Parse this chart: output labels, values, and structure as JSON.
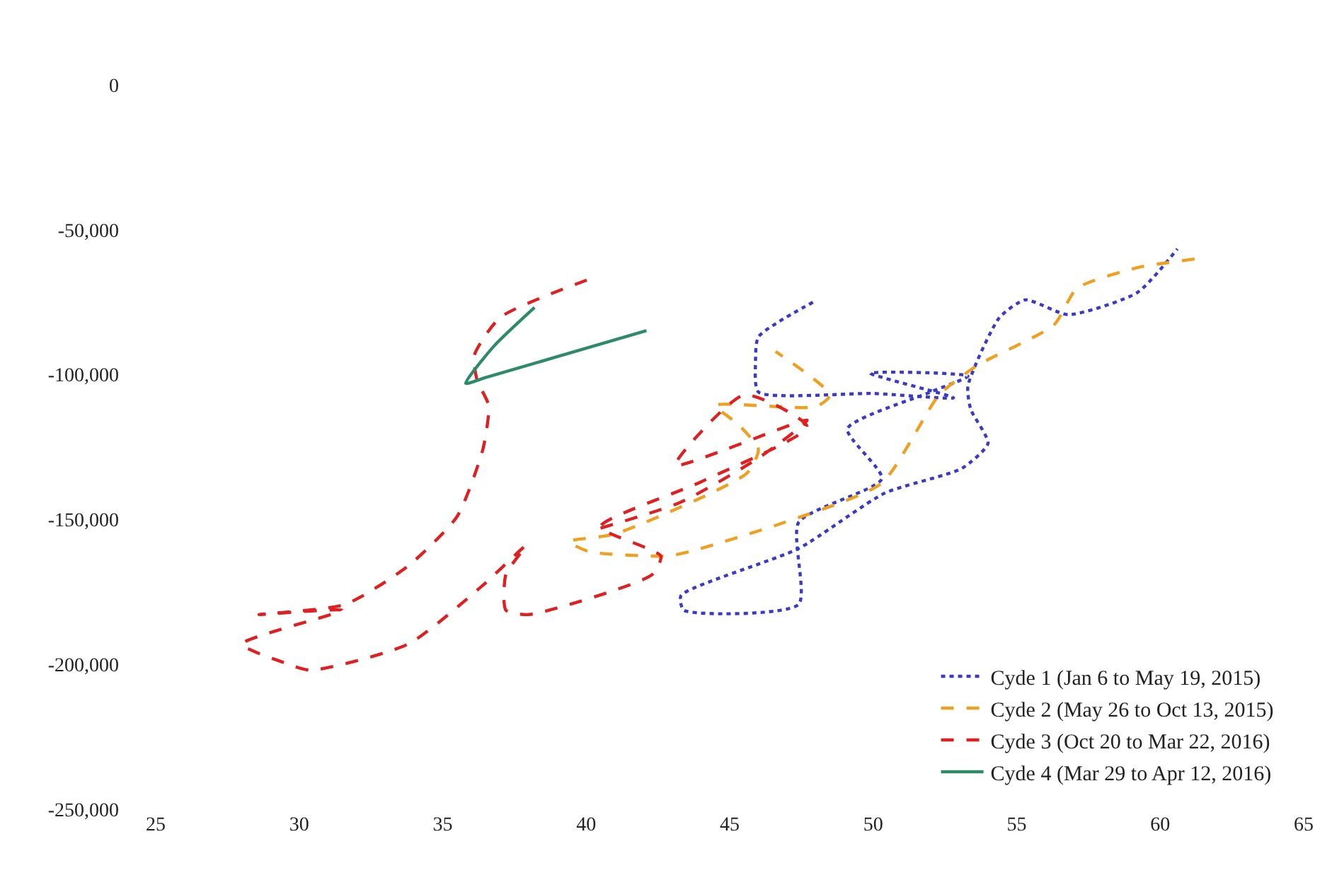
{
  "chart_data": {
    "type": "line",
    "xlim": [
      25,
      65
    ],
    "xticks": [
      25,
      30,
      35,
      40,
      45,
      50,
      55,
      60,
      65
    ],
    "ylim": [
      -250000,
      0
    ],
    "yticks": [
      {
        "value": 0,
        "label": "0"
      },
      {
        "value": -50000,
        "label": "-50,000"
      },
      {
        "value": -100000,
        "label": "-100,000"
      },
      {
        "value": -150000,
        "label": "-150,000"
      },
      {
        "value": -200000,
        "label": "-200,000"
      },
      {
        "value": -250000,
        "label": "-250,000"
      }
    ],
    "legend": "bottom right",
    "marker": "none",
    "series": [
      {
        "name": "Cyde 1 (Jan 6 to May 19, 2015)",
        "color": "#3a3ac8",
        "line_style": "dotted",
        "x": [
          47.9,
          46.0,
          45.9,
          46.0,
          50.0,
          52.8,
          49.9,
          53.3,
          52.0,
          49.1,
          50.3,
          47.4,
          47.4,
          43.4,
          43.3,
          47.4,
          50.4,
          53.1,
          54.0,
          53.4,
          53.3,
          54.4,
          55.3,
          56.8,
          59.2,
          60.6
        ],
        "values": [
          -75000,
          -87000,
          -95500,
          -106000,
          -106500,
          -108000,
          -99500,
          -100500,
          -106000,
          -118700,
          -135900,
          -151000,
          -179300,
          -181300,
          -176300,
          -160000,
          -140900,
          -132300,
          -123700,
          -112000,
          -104000,
          -80300,
          -74200,
          -79300,
          -71700,
          -56600
        ]
      },
      {
        "name": "Cyde 2 (May 26 to Oct 13, 2015)",
        "color": "#f0a020",
        "line_style": "dashed",
        "x": [
          61.2,
          59.2,
          57.1,
          56.3,
          53.6,
          52.3,
          50.3,
          46.9,
          43.6,
          42.8,
          40.1,
          39.4,
          41.0,
          45.6,
          46.0,
          45.3,
          44.5,
          48.0,
          48.5,
          46.6
        ],
        "values": [
          -60100,
          -63100,
          -70200,
          -82800,
          -97000,
          -107000,
          -137400,
          -151000,
          -161100,
          -162600,
          -161100,
          -157600,
          -155000,
          -134000,
          -125800,
          -117200,
          -110600,
          -111100,
          -107000,
          -92000
        ]
      },
      {
        "name": "Cyde 3 (Oct 20 to Mar 22, 2016)",
        "color": "#e02020",
        "line_style": "dashed",
        "x": [
          40.5,
          43.3,
          46.0,
          47.7,
          43.1,
          45.5,
          47.7,
          44.0,
          40.5,
          42.6,
          42.3,
          38.0,
          37.2,
          37.2,
          37.9,
          36.4,
          33.8,
          30.4,
          29.5,
          28.0,
          31.5,
          28.6,
          31.6,
          33.8,
          35.5,
          36.4,
          36.6,
          36.2,
          36.1,
          37.0,
          40.2
        ],
        "values": [
          -153000,
          -144000,
          -128800,
          -115700,
          -131300,
          -107000,
          -118000,
          -137000,
          -152500,
          -162600,
          -169000,
          -182800,
          -181300,
          -169000,
          -159000,
          -172700,
          -193000,
          -202000,
          -199500,
          -193000,
          -181300,
          -182800,
          -179300,
          -166000,
          -149000,
          -125800,
          -110600,
          -102000,
          -93400,
          -80300,
          -66700
        ]
      },
      {
        "name": "Cyde 4 (Mar 29 to Apr 12, 2016)",
        "color": "#2e8b6a",
        "line_style": "solid",
        "x": [
          38.2,
          36.8,
          35.8,
          36.5,
          42.1
        ],
        "values": [
          -76800,
          -90000,
          -103000,
          -101000,
          -84800
        ]
      }
    ]
  }
}
